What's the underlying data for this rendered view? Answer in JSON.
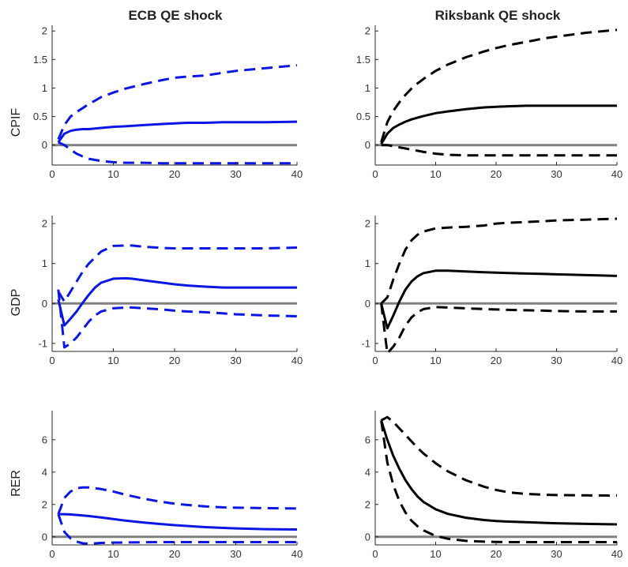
{
  "column_titles": [
    "ECB QE shock",
    "Riksbank QE shock"
  ],
  "row_labels": [
    "CPIF",
    "GDP",
    "RER"
  ],
  "colors": {
    "ecb": "#0a16e6",
    "riksbank": "#000000",
    "zero_line": "#808080",
    "axis": "#262626"
  },
  "chart_data": [
    {
      "type": "line",
      "row": "CPIF",
      "column": "ECB QE shock",
      "xlim": [
        0,
        40
      ],
      "ylim": [
        -0.35,
        2.1
      ],
      "xticks": [
        0,
        10,
        20,
        30,
        40
      ],
      "yticks": [
        0,
        0.5,
        1,
        1.5,
        2
      ],
      "ytick_labels": [
        "0",
        "0.5",
        "1",
        "1.5",
        "2"
      ],
      "x": [
        1,
        2,
        3,
        4,
        5,
        6,
        7,
        8,
        10,
        12,
        15,
        18,
        20,
        22,
        25,
        28,
        30,
        35,
        40
      ],
      "series": [
        {
          "role": "median",
          "color": "#0a16e6",
          "dash": "solid",
          "values": [
            0.05,
            0.2,
            0.25,
            0.27,
            0.28,
            0.28,
            0.29,
            0.3,
            0.32,
            0.33,
            0.35,
            0.37,
            0.38,
            0.39,
            0.39,
            0.4,
            0.4,
            0.4,
            0.41
          ]
        },
        {
          "role": "upper",
          "color": "#0a16e6",
          "dash": "dashed",
          "values": [
            0.1,
            0.35,
            0.5,
            0.58,
            0.65,
            0.72,
            0.78,
            0.84,
            0.92,
            0.99,
            1.07,
            1.14,
            1.18,
            1.2,
            1.22,
            1.27,
            1.3,
            1.35,
            1.4
          ]
        },
        {
          "role": "lower",
          "color": "#0a16e6",
          "dash": "dashed",
          "values": [
            0.05,
            0.0,
            -0.08,
            -0.15,
            -0.2,
            -0.24,
            -0.26,
            -0.28,
            -0.3,
            -0.31,
            -0.31,
            -0.32,
            -0.32,
            -0.32,
            -0.32,
            -0.32,
            -0.32,
            -0.32,
            -0.32
          ]
        }
      ]
    },
    {
      "type": "line",
      "row": "CPIF",
      "column": "Riksbank QE shock",
      "xlim": [
        0,
        40
      ],
      "ylim": [
        -0.35,
        2.1
      ],
      "xticks": [
        0,
        10,
        20,
        30,
        40
      ],
      "yticks": [
        0,
        0.5,
        1,
        1.5,
        2
      ],
      "ytick_labels": [
        "0",
        "0.5",
        "1",
        "1.5",
        "2"
      ],
      "x": [
        1,
        2,
        3,
        4,
        5,
        6,
        7,
        8,
        10,
        12,
        15,
        18,
        20,
        22,
        25,
        28,
        30,
        35,
        40
      ],
      "series": [
        {
          "role": "median",
          "color": "#000000",
          "dash": "solid",
          "values": [
            0.02,
            0.2,
            0.3,
            0.36,
            0.41,
            0.45,
            0.48,
            0.51,
            0.56,
            0.59,
            0.63,
            0.66,
            0.67,
            0.68,
            0.69,
            0.69,
            0.69,
            0.69,
            0.69
          ]
        },
        {
          "role": "upper",
          "color": "#000000",
          "dash": "dashed",
          "values": [
            0.05,
            0.4,
            0.6,
            0.75,
            0.88,
            0.99,
            1.08,
            1.16,
            1.3,
            1.41,
            1.54,
            1.64,
            1.7,
            1.75,
            1.81,
            1.87,
            1.9,
            1.97,
            2.02
          ]
        },
        {
          "role": "lower",
          "color": "#000000",
          "dash": "dashed",
          "values": [
            0.0,
            0.0,
            -0.02,
            -0.04,
            -0.06,
            -0.08,
            -0.1,
            -0.12,
            -0.15,
            -0.17,
            -0.18,
            -0.18,
            -0.18,
            -0.18,
            -0.18,
            -0.18,
            -0.18,
            -0.18,
            -0.18
          ]
        }
      ]
    },
    {
      "type": "line",
      "row": "GDP",
      "column": "ECB QE shock",
      "xlim": [
        0,
        40
      ],
      "ylim": [
        -1.2,
        2.2
      ],
      "xticks": [
        0,
        10,
        20,
        30,
        40
      ],
      "yticks": [
        -1,
        0,
        1,
        2
      ],
      "ytick_labels": [
        "-1",
        "0",
        "1",
        "2"
      ],
      "x": [
        1,
        2,
        3,
        4,
        5,
        6,
        7,
        8,
        10,
        12,
        13,
        15,
        18,
        20,
        22,
        25,
        28,
        30,
        35,
        40
      ],
      "series": [
        {
          "role": "median",
          "color": "#0a16e6",
          "dash": "solid",
          "values": [
            0.1,
            -0.55,
            -0.38,
            -0.2,
            0.02,
            0.22,
            0.4,
            0.52,
            0.62,
            0.63,
            0.62,
            0.58,
            0.52,
            0.48,
            0.45,
            0.42,
            0.4,
            0.4,
            0.4,
            0.4
          ]
        },
        {
          "role": "upper",
          "color": "#0a16e6",
          "dash": "dashed",
          "values": [
            0.3,
            0.05,
            0.3,
            0.55,
            0.8,
            1.0,
            1.15,
            1.3,
            1.44,
            1.45,
            1.45,
            1.42,
            1.39,
            1.38,
            1.38,
            1.38,
            1.38,
            1.38,
            1.38,
            1.4
          ]
        },
        {
          "role": "lower",
          "color": "#0a16e6",
          "dash": "dashed",
          "values": [
            0.35,
            -1.1,
            -1.0,
            -0.85,
            -0.65,
            -0.45,
            -0.3,
            -0.2,
            -0.12,
            -0.1,
            -0.1,
            -0.12,
            -0.15,
            -0.18,
            -0.2,
            -0.22,
            -0.25,
            -0.27,
            -0.3,
            -0.32
          ]
        }
      ]
    },
    {
      "type": "line",
      "row": "GDP",
      "column": "Riksbank QE shock",
      "xlim": [
        0,
        40
      ],
      "ylim": [
        -1.2,
        2.2
      ],
      "xticks": [
        0,
        10,
        20,
        30,
        40
      ],
      "yticks": [
        -1,
        0,
        1,
        2
      ],
      "ytick_labels": [
        "-1",
        "0",
        "1",
        "2"
      ],
      "x": [
        1,
        2,
        3,
        4,
        5,
        6,
        7,
        8,
        10,
        12,
        15,
        18,
        20,
        22,
        25,
        28,
        30,
        35,
        40
      ],
      "series": [
        {
          "role": "median",
          "color": "#000000",
          "dash": "solid",
          "values": [
            0.0,
            -0.62,
            -0.3,
            0.05,
            0.35,
            0.55,
            0.68,
            0.76,
            0.82,
            0.82,
            0.8,
            0.78,
            0.77,
            0.76,
            0.75,
            0.74,
            0.73,
            0.71,
            0.69
          ]
        },
        {
          "role": "upper",
          "color": "#000000",
          "dash": "dashed",
          "values": [
            0.0,
            0.15,
            0.6,
            1.0,
            1.35,
            1.58,
            1.72,
            1.8,
            1.88,
            1.9,
            1.92,
            1.95,
            2.0,
            2.02,
            2.04,
            2.06,
            2.08,
            2.1,
            2.12
          ]
        },
        {
          "role": "lower",
          "color": "#000000",
          "dash": "dashed",
          "values": [
            0.0,
            -1.25,
            -1.08,
            -0.85,
            -0.55,
            -0.35,
            -0.22,
            -0.14,
            -0.09,
            -0.1,
            -0.12,
            -0.14,
            -0.15,
            -0.16,
            -0.17,
            -0.18,
            -0.19,
            -0.2,
            -0.2
          ]
        }
      ]
    },
    {
      "type": "line",
      "row": "RER",
      "column": "ECB QE shock",
      "xlim": [
        0,
        40
      ],
      "ylim": [
        -0.5,
        7.8
      ],
      "xticks": [
        0,
        10,
        20,
        30,
        40
      ],
      "yticks": [
        0,
        2,
        4,
        6
      ],
      "ytick_labels": [
        "0",
        "2",
        "4",
        "6"
      ],
      "x": [
        1,
        2,
        3,
        4,
        5,
        6,
        7,
        8,
        10,
        12,
        15,
        18,
        20,
        22,
        25,
        28,
        30,
        35,
        40
      ],
      "series": [
        {
          "role": "median",
          "color": "#0a16e6",
          "dash": "solid",
          "values": [
            1.4,
            1.4,
            1.38,
            1.35,
            1.32,
            1.28,
            1.24,
            1.2,
            1.1,
            1.0,
            0.88,
            0.78,
            0.72,
            0.67,
            0.6,
            0.55,
            0.52,
            0.47,
            0.45
          ]
        },
        {
          "role": "upper",
          "color": "#0a16e6",
          "dash": "dashed",
          "values": [
            1.4,
            2.4,
            2.8,
            3.0,
            3.05,
            3.05,
            3.0,
            2.95,
            2.8,
            2.6,
            2.35,
            2.15,
            2.05,
            1.97,
            1.88,
            1.82,
            1.8,
            1.77,
            1.75
          ]
        },
        {
          "role": "lower",
          "color": "#0a16e6",
          "dash": "dashed",
          "values": [
            1.4,
            0.3,
            -0.1,
            -0.3,
            -0.4,
            -0.42,
            -0.4,
            -0.38,
            -0.36,
            -0.35,
            -0.34,
            -0.33,
            -0.33,
            -0.33,
            -0.33,
            -0.33,
            -0.33,
            -0.33,
            -0.33
          ]
        }
      ]
    },
    {
      "type": "line",
      "row": "RER",
      "column": "Riksbank QE shock",
      "xlim": [
        0,
        40
      ],
      "ylim": [
        -0.5,
        7.8
      ],
      "xticks": [
        0,
        10,
        20,
        30,
        40
      ],
      "yticks": [
        0,
        2,
        4,
        6
      ],
      "ytick_labels": [
        "0",
        "2",
        "4",
        "6"
      ],
      "x": [
        1,
        2,
        3,
        4,
        5,
        6,
        7,
        8,
        10,
        12,
        15,
        18,
        20,
        22,
        25,
        28,
        30,
        35,
        40
      ],
      "series": [
        {
          "role": "median",
          "color": "#000000",
          "dash": "solid",
          "values": [
            7.2,
            6.0,
            5.0,
            4.2,
            3.5,
            2.95,
            2.5,
            2.15,
            1.7,
            1.42,
            1.18,
            1.04,
            0.98,
            0.94,
            0.9,
            0.86,
            0.84,
            0.8,
            0.77
          ]
        },
        {
          "role": "upper",
          "color": "#000000",
          "dash": "dashed",
          "values": [
            7.2,
            7.4,
            7.1,
            6.7,
            6.3,
            5.9,
            5.5,
            5.15,
            4.55,
            4.05,
            3.5,
            3.1,
            2.9,
            2.75,
            2.65,
            2.6,
            2.58,
            2.56,
            2.55
          ]
        },
        {
          "role": "lower",
          "color": "#000000",
          "dash": "dashed",
          "values": [
            7.2,
            4.6,
            3.2,
            2.2,
            1.5,
            1.0,
            0.65,
            0.4,
            0.05,
            -0.12,
            -0.25,
            -0.3,
            -0.32,
            -0.33,
            -0.33,
            -0.33,
            -0.33,
            -0.33,
            -0.33
          ]
        }
      ]
    }
  ]
}
